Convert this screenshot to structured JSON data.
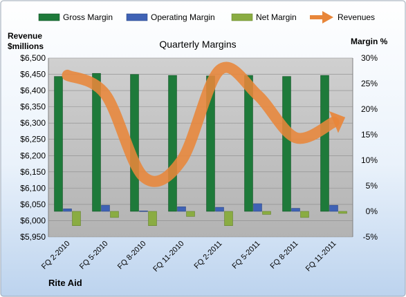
{
  "chart_data": {
    "type": "bar",
    "title": "Quarterly Margins",
    "company": "Rite Aid",
    "left_axis_label": [
      "Revenue",
      "$millions"
    ],
    "right_axis_label": "Margin %",
    "categories": [
      "FQ 2-2010",
      "FQ 5-2010",
      "FQ 8-2010",
      "FQ 11-2010",
      "FQ 2-2011",
      "FQ 5-2011",
      "FQ 8-2011",
      "FQ 11-2011"
    ],
    "left_axis": {
      "min": 5950,
      "max": 6500,
      "step": 50,
      "tick_labels": [
        "$5,950",
        "$6,000",
        "$6,050",
        "$6,100",
        "$6,150",
        "$6,200",
        "$6,250",
        "$6,300",
        "$6,350",
        "$6,400",
        "$6,450",
        "$6,500"
      ]
    },
    "right_axis": {
      "min": -5,
      "max": 30,
      "step": 5,
      "tick_labels": [
        "-5%",
        "0%",
        "5%",
        "10%",
        "15%",
        "20%",
        "25%",
        "30%"
      ]
    },
    "grid": true,
    "legend_position": "top",
    "series": [
      {
        "name": "Gross Margin",
        "kind": "bar",
        "axis": "right",
        "color": "#1e7a3a",
        "values": [
          26.4,
          27.0,
          26.8,
          26.6,
          26.5,
          26.6,
          26.4,
          26.6
        ]
      },
      {
        "name": "Operating Margin",
        "kind": "bar",
        "axis": "right",
        "color": "#3f62b5",
        "values": [
          0.5,
          1.2,
          0.1,
          0.9,
          0.8,
          1.5,
          0.6,
          1.2
        ]
      },
      {
        "name": "Net Margin",
        "kind": "bar",
        "axis": "right",
        "color": "#8aac42",
        "values": [
          -2.8,
          -1.2,
          -2.8,
          -1.0,
          -2.8,
          -0.6,
          -1.2,
          -0.4
        ]
      },
      {
        "name": "Revenues",
        "kind": "line",
        "axis": "left",
        "color": "#e8863a",
        "values": [
          6447,
          6388,
          6135,
          6185,
          6463,
          6386,
          6255,
          6303
        ]
      }
    ]
  }
}
